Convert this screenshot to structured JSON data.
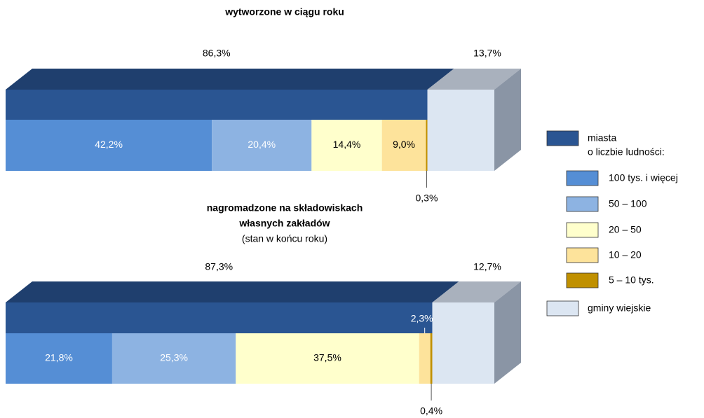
{
  "chart_data": [
    {
      "type": "bar",
      "stacked": true,
      "orientation": "horizontal",
      "title": [
        "wytworzone w ciągu roku"
      ],
      "xlim": [
        0,
        100
      ],
      "totals": [
        {
          "name": "miasta",
          "color": "#2a5592",
          "value": 86.3,
          "value_label": "86,3%"
        },
        {
          "name": "gminy wiejskie",
          "color": "#dce6f2",
          "value": 13.7,
          "value_label": "13,7%"
        }
      ],
      "legend_note": "o liczbie ludności:",
      "series": [
        {
          "name": "100 tys. i więcej",
          "color": "#558ed5",
          "values": [
            42.2
          ],
          "value_labels": [
            "42,2%"
          ]
        },
        {
          "name": "50 – 100",
          "color": "#8db3e2",
          "values": [
            20.4
          ],
          "value_labels": [
            "20,4%"
          ]
        },
        {
          "name": "20 – 50",
          "color": "#ffffcc",
          "values": [
            14.4
          ],
          "value_labels": [
            "14,4%"
          ]
        },
        {
          "name": "10 – 20",
          "color": "#fde39b",
          "values": [
            9.0
          ],
          "value_labels": [
            "9,0%"
          ]
        },
        {
          "name": "5 – 10 tys.",
          "color": "#c09000",
          "values": [
            0.3
          ],
          "value_labels": [
            "0,3%"
          ]
        }
      ]
    },
    {
      "type": "bar",
      "stacked": true,
      "orientation": "horizontal",
      "title": [
        "nagromadzone na składowiskach",
        "własnych zakładów"
      ],
      "subtitle": "(stan w końcu roku)",
      "xlim": [
        0,
        100
      ],
      "totals": [
        {
          "value": 87.3,
          "value_label": "87,3%"
        },
        {
          "value": 12.7,
          "value_label": "12,7%"
        }
      ],
      "series": [
        {
          "values": [
            21.8
          ],
          "value_labels": [
            "21,8%"
          ]
        },
        {
          "values": [
            25.3
          ],
          "value_labels": [
            "25,3%"
          ]
        },
        {
          "values": [
            37.5
          ],
          "value_labels": [
            "37,5%"
          ]
        },
        {
          "values": [
            2.3
          ],
          "value_labels": [
            "2,3%"
          ]
        },
        {
          "values": [
            0.4
          ],
          "value_labels": [
            "0,4%"
          ]
        }
      ]
    }
  ]
}
